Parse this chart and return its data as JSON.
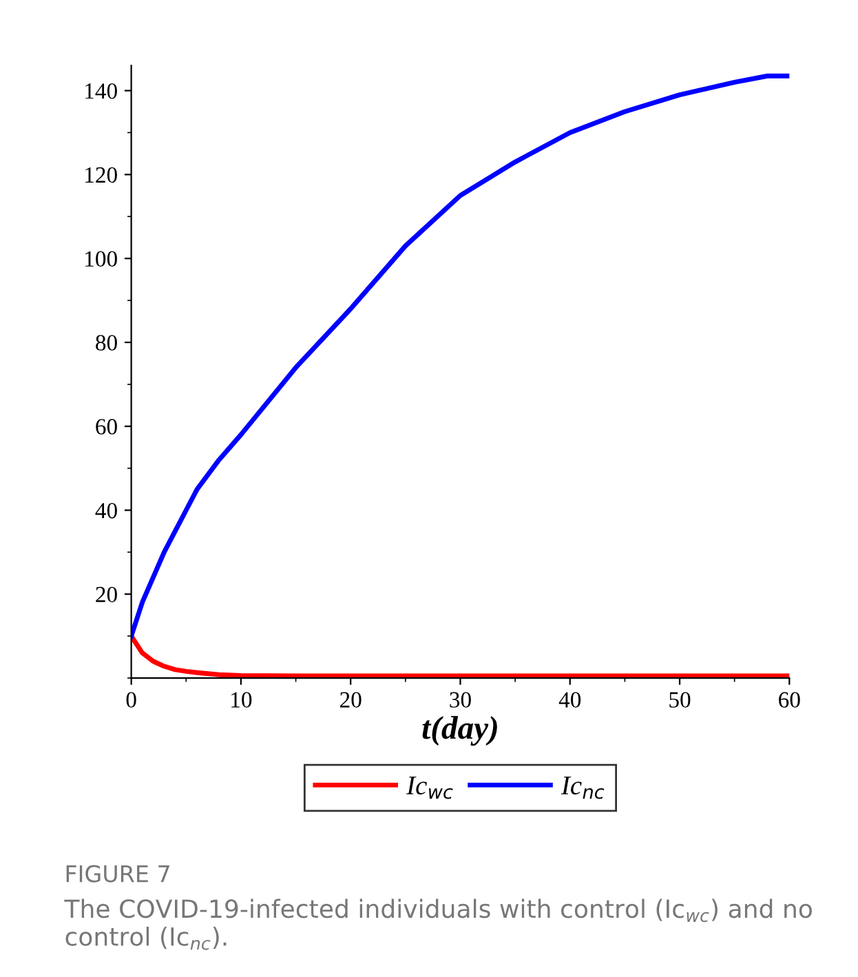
{
  "chart_data": {
    "type": "line",
    "xlabel": "t(day)",
    "x": [
      0,
      1,
      2,
      3,
      4,
      5,
      6,
      8,
      10,
      15,
      20,
      25,
      30,
      35,
      40,
      45,
      50,
      55,
      58,
      60
    ],
    "series": [
      {
        "name": "Ic$_{wc}$",
        "color": "#ff0000",
        "values": [
          10,
          6,
          4,
          2.8,
          2,
          1.6,
          1.3,
          0.8,
          0.6,
          0.5,
          0.5,
          0.5,
          0.5,
          0.5,
          0.5,
          0.5,
          0.5,
          0.5,
          0.5,
          0.5
        ]
      },
      {
        "name": "Ic$_{nc}$",
        "color": "#0000ff",
        "values": [
          10,
          18,
          24,
          30,
          35,
          40,
          45,
          52,
          58,
          74,
          88,
          103,
          115,
          123,
          130,
          135,
          139,
          142,
          143.5,
          143.5
        ]
      }
    ],
    "xlim": [
      0,
      60
    ],
    "ylim": [
      0,
      146
    ],
    "xticks": [
      0,
      10,
      20,
      30,
      40,
      50,
      60
    ],
    "yticks": [
      20,
      40,
      60,
      80,
      100,
      120,
      140
    ],
    "grid": false,
    "legend": "bottom",
    "marker": "none",
    "line_style": "solid",
    "annotations": [
      "FIGURE 7",
      "The COVID-19-infected individuals with control (Ic$_{wc}$) and no control (Ic$_{nc}$)."
    ]
  }
}
